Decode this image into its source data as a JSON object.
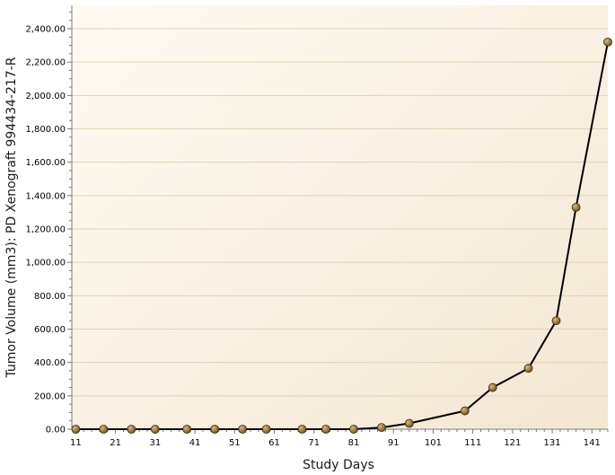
{
  "chart_data": {
    "type": "line",
    "title": "",
    "xlabel": "Study Days",
    "ylabel": "Tumor Volume (mm3): PD Xenograft 994434-217-R",
    "xlim": [
      10,
      145
    ],
    "ylim": [
      0,
      2540
    ],
    "x_ticks": [
      11,
      21,
      31,
      41,
      51,
      61,
      71,
      81,
      91,
      101,
      111,
      121,
      131,
      141
    ],
    "y_ticks": [
      0,
      200,
      400,
      600,
      800,
      1000,
      1200,
      1400,
      1600,
      1800,
      2000,
      2200,
      2400
    ],
    "y_tick_labels": [
      "0.00",
      "200.00",
      "400.00",
      "600.00",
      "800.00",
      "1,000.00",
      "1,200.00",
      "1,400.00",
      "1,600.00",
      "1,800.00",
      "2,000.00",
      "2,200.00",
      "2,400.00"
    ],
    "grid": true,
    "series": [
      {
        "name": "Tumor Volume",
        "color": "#000000",
        "marker_color": "#8a6a2e",
        "x": [
          11,
          18,
          25,
          31,
          39,
          46,
          53,
          59,
          68,
          74,
          81,
          88,
          95,
          109,
          116,
          125,
          132,
          137,
          145
        ],
        "y": [
          0,
          0,
          0,
          0,
          0,
          0,
          0,
          0,
          0,
          0,
          0,
          10,
          35,
          110,
          250,
          365,
          650,
          1330,
          2320
        ]
      }
    ]
  },
  "colors": {
    "plot_bg_light": "#fefaf3",
    "plot_bg_dark": "#f3e7d2",
    "grid": "#e2d2b6",
    "axis": "#7a7a7a"
  }
}
